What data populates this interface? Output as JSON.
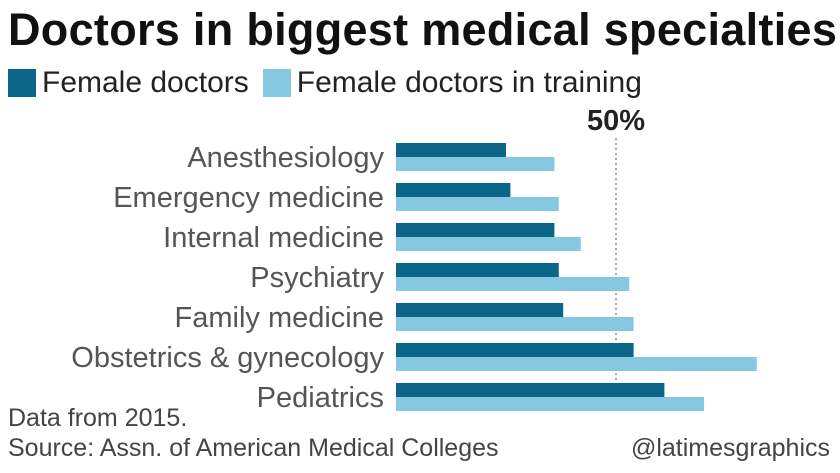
{
  "title": "Doctors in biggest medical specialties",
  "legend": {
    "female": "Female doctors",
    "training": "Female doctors in training"
  },
  "colors": {
    "female": "#0b6687",
    "training": "#86c8e2"
  },
  "reference": {
    "label": "50%",
    "value": 50
  },
  "footer": {
    "note": "Data from 2015.",
    "source": "Source: Assn. of American Medical Colleges",
    "credit": "@latimesgraphics"
  },
  "chart_data": {
    "type": "bar",
    "orientation": "horizontal",
    "title": "Doctors in biggest medical specialties",
    "categories": [
      "Anesthesiology",
      "Emergency medicine",
      "Internal medicine",
      "Psychiatry",
      "Family medicine",
      "Obstetrics & gynecology",
      "Pediatrics"
    ],
    "series": [
      {
        "name": "Female doctors",
        "values": [
          25,
          26,
          36,
          37,
          38,
          54,
          61
        ]
      },
      {
        "name": "Female doctors in training",
        "values": [
          36,
          37,
          42,
          53,
          54,
          82,
          70
        ]
      }
    ],
    "xlim": [
      0,
      100
    ],
    "grid": false,
    "legend_position": "top-left"
  }
}
